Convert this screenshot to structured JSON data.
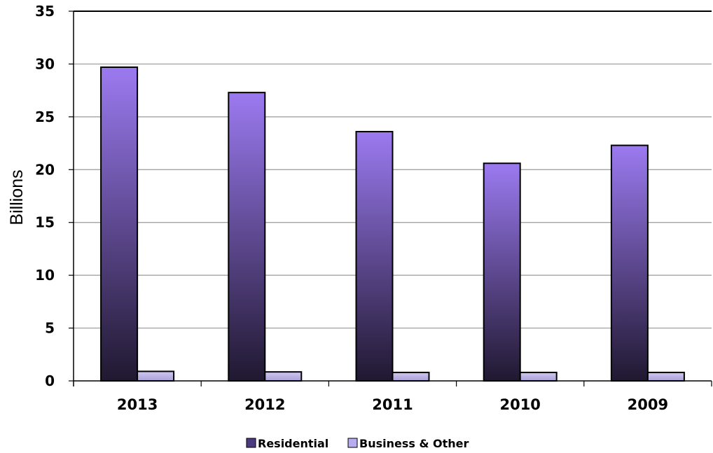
{
  "chart_data": {
    "type": "bar",
    "title": "",
    "xlabel": "",
    "ylabel": "Billions",
    "ylim": [
      0,
      35
    ],
    "ytick_step": 5,
    "grid": true,
    "legend_position": "bottom",
    "categories": [
      "2013",
      "2012",
      "2011",
      "2010",
      "2009"
    ],
    "series": [
      {
        "name": "Residential",
        "values": [
          29.7,
          27.3,
          23.6,
          20.6,
          22.3
        ],
        "color_top": "#9b7af0",
        "color_bottom": "#201830",
        "legend_color": "#4a3a80"
      },
      {
        "name": "Business & Other",
        "values": [
          0.9,
          0.85,
          0.8,
          0.8,
          0.8
        ],
        "color_top": "#d0c8f0",
        "color_bottom": "#aaa0d8",
        "legend_color": "#b8acf0"
      }
    ],
    "colors": {
      "gridline": "#999999",
      "axis": "#000000",
      "bar_stroke": "#000000"
    }
  }
}
